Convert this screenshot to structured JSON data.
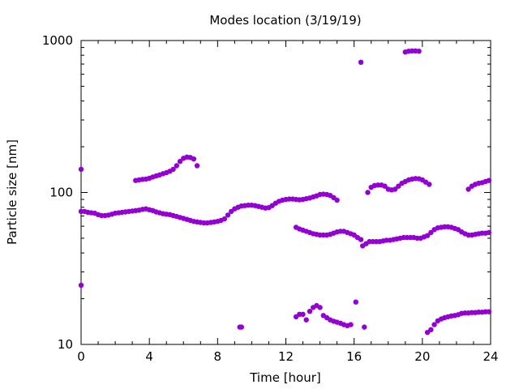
{
  "chart_data": {
    "type": "scatter",
    "title": "Modes location (3/19/19)",
    "xlabel": "Time [hour]",
    "ylabel": "Particle size [nm]",
    "xlim": [
      0,
      24
    ],
    "ylim": [
      10,
      1000
    ],
    "yscale": "log",
    "xticks": [
      0,
      4,
      8,
      12,
      16,
      20,
      24
    ],
    "yticks": [
      10,
      100,
      1000
    ],
    "marker_color": "#9400d3",
    "series": [
      {
        "points": [
          [
            0,
            142
          ],
          [
            0,
            24.5
          ],
          [
            0,
            75
          ],
          [
            0.2,
            75
          ],
          [
            0.4,
            74
          ],
          [
            0.6,
            73.5
          ],
          [
            0.8,
            73
          ],
          [
            1.0,
            71.5
          ],
          [
            1.2,
            70.5
          ],
          [
            1.4,
            70.5
          ],
          [
            1.6,
            71
          ],
          [
            1.8,
            72
          ],
          [
            2.0,
            73
          ],
          [
            2.2,
            73.5
          ],
          [
            2.4,
            74
          ],
          [
            2.6,
            74.5
          ],
          [
            2.8,
            75
          ],
          [
            3.0,
            75.5
          ],
          [
            3.2,
            76
          ],
          [
            3.4,
            76.5
          ],
          [
            3.6,
            77.5
          ],
          [
            3.8,
            78
          ],
          [
            4.0,
            77
          ],
          [
            4.2,
            76
          ],
          [
            4.4,
            74.5
          ],
          [
            4.6,
            73.5
          ],
          [
            4.8,
            72.5
          ],
          [
            5.0,
            72
          ],
          [
            5.2,
            71.5
          ],
          [
            5.4,
            70.5
          ],
          [
            5.6,
            69.5
          ],
          [
            5.8,
            68.5
          ],
          [
            6.0,
            67.5
          ],
          [
            6.2,
            66.5
          ],
          [
            6.4,
            65.5
          ],
          [
            6.6,
            64.5
          ],
          [
            6.8,
            64
          ],
          [
            7.0,
            63.5
          ],
          [
            7.2,
            63
          ],
          [
            7.4,
            63
          ],
          [
            7.6,
            63.5
          ],
          [
            7.8,
            64
          ],
          [
            8.0,
            64.5
          ],
          [
            8.2,
            65.5
          ],
          [
            8.4,
            67
          ],
          [
            8.6,
            71
          ],
          [
            8.8,
            75
          ],
          [
            9.0,
            78
          ],
          [
            9.2,
            80
          ],
          [
            9.4,
            81.5
          ],
          [
            9.6,
            82
          ],
          [
            9.8,
            82.5
          ],
          [
            10.0,
            82.5
          ],
          [
            10.2,
            82
          ],
          [
            10.4,
            81
          ],
          [
            10.6,
            80
          ],
          [
            10.8,
            79
          ],
          [
            11.0,
            79.5
          ],
          [
            11.2,
            82
          ],
          [
            11.4,
            85
          ],
          [
            11.6,
            87.5
          ],
          [
            11.8,
            89
          ],
          [
            12.0,
            90
          ],
          [
            12.2,
            90.5
          ],
          [
            12.4,
            90.5
          ],
          [
            12.6,
            90
          ],
          [
            12.8,
            89.5
          ],
          [
            13.0,
            90
          ],
          [
            13.2,
            91
          ],
          [
            13.4,
            92
          ],
          [
            13.6,
            93.5
          ],
          [
            13.8,
            95
          ],
          [
            14.0,
            97
          ],
          [
            14.2,
            97.5
          ],
          [
            14.4,
            97
          ],
          [
            14.6,
            95.5
          ],
          [
            14.8,
            92.5
          ],
          [
            15.0,
            89
          ],
          [
            3.2,
            120
          ],
          [
            3.4,
            121
          ],
          [
            3.6,
            122
          ],
          [
            3.8,
            122.5
          ],
          [
            4.0,
            124
          ],
          [
            4.2,
            126.5
          ],
          [
            4.4,
            128.5
          ],
          [
            4.6,
            130.5
          ],
          [
            4.8,
            133
          ],
          [
            5.0,
            135
          ],
          [
            5.2,
            138
          ],
          [
            5.4,
            142
          ],
          [
            5.6,
            150
          ],
          [
            5.8,
            160
          ],
          [
            6.0,
            168
          ],
          [
            6.2,
            171
          ],
          [
            6.4,
            170
          ],
          [
            6.6,
            166
          ],
          [
            6.8,
            150
          ],
          [
            9.3,
            13
          ],
          [
            9.4,
            13
          ],
          [
            12.6,
            59
          ],
          [
            12.8,
            57.5
          ],
          [
            13.0,
            56.5
          ],
          [
            13.2,
            55.5
          ],
          [
            13.4,
            54.5
          ],
          [
            13.6,
            53.5
          ],
          [
            13.8,
            53
          ],
          [
            14.0,
            52.5
          ],
          [
            14.2,
            52.5
          ],
          [
            14.4,
            52.5
          ],
          [
            14.6,
            53
          ],
          [
            14.8,
            54
          ],
          [
            15.0,
            55
          ],
          [
            15.2,
            55.5
          ],
          [
            15.4,
            55.5
          ],
          [
            15.6,
            54.5
          ],
          [
            15.8,
            53.5
          ],
          [
            16.0,
            52.5
          ],
          [
            16.2,
            50.5
          ],
          [
            16.4,
            49
          ],
          [
            12.6,
            15.2
          ],
          [
            12.8,
            15.8
          ],
          [
            13.0,
            15.8
          ],
          [
            13.2,
            14.5
          ],
          [
            13.4,
            16.5
          ],
          [
            13.6,
            17.5
          ],
          [
            13.8,
            18
          ],
          [
            14.0,
            17.5
          ],
          [
            14.2,
            15.5
          ],
          [
            14.4,
            15
          ],
          [
            14.6,
            14.5
          ],
          [
            14.8,
            14.2
          ],
          [
            15.0,
            14
          ],
          [
            15.2,
            13.8
          ],
          [
            15.4,
            13.5
          ],
          [
            15.6,
            13.3
          ],
          [
            15.8,
            13.5
          ],
          [
            16.1,
            19
          ],
          [
            16.4,
            720
          ],
          [
            16.5,
            44.5
          ],
          [
            16.7,
            46
          ],
          [
            16.9,
            47.5
          ],
          [
            17.1,
            47.5
          ],
          [
            17.3,
            47.5
          ],
          [
            17.5,
            47.5
          ],
          [
            17.7,
            48
          ],
          [
            17.9,
            48.5
          ],
          [
            18.1,
            48.5
          ],
          [
            18.3,
            49
          ],
          [
            18.5,
            49.5
          ],
          [
            18.7,
            50
          ],
          [
            18.9,
            50.5
          ],
          [
            19.1,
            50.5
          ],
          [
            19.3,
            50.5
          ],
          [
            19.5,
            50.5
          ],
          [
            19.7,
            50
          ],
          [
            19.9,
            50
          ],
          [
            20.1,
            51
          ],
          [
            20.3,
            52
          ],
          [
            20.5,
            54.5
          ],
          [
            20.7,
            57
          ],
          [
            20.9,
            58.5
          ],
          [
            21.1,
            59
          ],
          [
            21.3,
            59.5
          ],
          [
            21.5,
            59.5
          ],
          [
            21.7,
            59
          ],
          [
            21.9,
            58
          ],
          [
            22.1,
            57
          ],
          [
            22.3,
            55
          ],
          [
            22.5,
            53.5
          ],
          [
            22.7,
            52.5
          ],
          [
            22.9,
            52.5
          ],
          [
            23.1,
            53
          ],
          [
            23.3,
            53.5
          ],
          [
            23.5,
            54
          ],
          [
            23.7,
            54
          ],
          [
            23.9,
            54.5
          ],
          [
            16.6,
            13
          ],
          [
            16.8,
            100
          ],
          [
            17.0,
            108
          ],
          [
            17.2,
            111
          ],
          [
            17.4,
            112
          ],
          [
            17.6,
            112
          ],
          [
            17.8,
            110
          ],
          [
            18.0,
            105
          ],
          [
            18.2,
            104
          ],
          [
            18.4,
            105
          ],
          [
            18.6,
            110
          ],
          [
            18.8,
            115
          ],
          [
            19.0,
            118
          ],
          [
            19.2,
            121
          ],
          [
            19.4,
            122.5
          ],
          [
            19.6,
            123.5
          ],
          [
            19.8,
            123
          ],
          [
            20.0,
            121
          ],
          [
            20.2,
            117
          ],
          [
            20.4,
            113
          ],
          [
            19.0,
            840
          ],
          [
            19.2,
            850
          ],
          [
            19.4,
            855
          ],
          [
            19.6,
            855
          ],
          [
            19.8,
            850
          ],
          [
            20.3,
            12
          ],
          [
            20.5,
            12.5
          ],
          [
            20.7,
            13.5
          ],
          [
            20.9,
            14.3
          ],
          [
            21.1,
            14.7
          ],
          [
            21.3,
            15
          ],
          [
            21.5,
            15.2
          ],
          [
            21.7,
            15.4
          ],
          [
            21.9,
            15.5
          ],
          [
            22.1,
            15.7
          ],
          [
            22.3,
            16
          ],
          [
            22.5,
            16.1
          ],
          [
            22.7,
            16.1
          ],
          [
            22.9,
            16.2
          ],
          [
            23.1,
            16.2
          ],
          [
            23.3,
            16.3
          ],
          [
            23.5,
            16.3
          ],
          [
            23.7,
            16.4
          ],
          [
            23.9,
            16.4
          ],
          [
            22.7,
            105
          ],
          [
            22.9,
            110
          ],
          [
            23.1,
            113
          ],
          [
            23.3,
            115
          ],
          [
            23.5,
            116
          ],
          [
            23.7,
            118
          ],
          [
            23.9,
            120
          ]
        ]
      }
    ]
  }
}
